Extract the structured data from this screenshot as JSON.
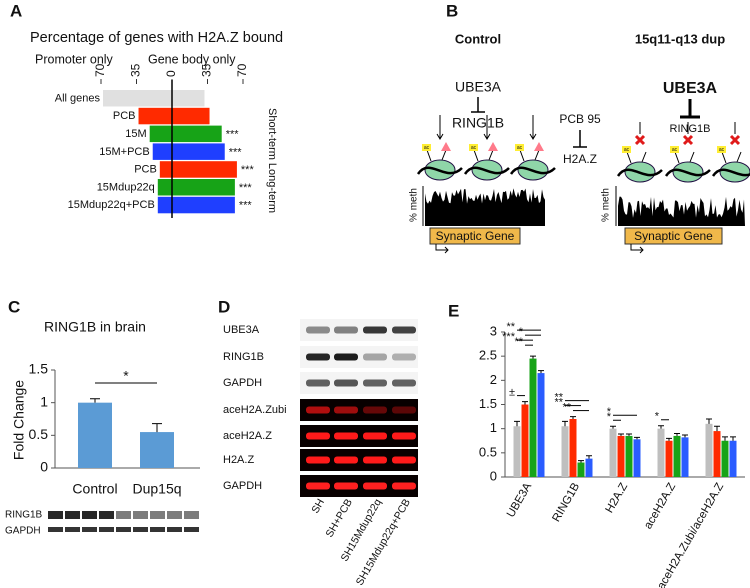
{
  "panel_labels": [
    "A",
    "B",
    "C",
    "D",
    "E"
  ],
  "chart_data": [
    {
      "type": "diverging_bar",
      "title": "Percentage of genes with H2A.Z bound",
      "categories": [
        "All genes",
        "PCB",
        "15M",
        "15M+PCB",
        "PCB",
        "15Mdup22q",
        "15Mdup22q+PCB"
      ],
      "series": [
        {
          "name": "Promoter only",
          "values": [
            -68,
            -33,
            -22,
            -19,
            -12,
            -14,
            -14
          ]
        },
        {
          "name": "Gene body only",
          "values": [
            32,
            37,
            49,
            52,
            64,
            62,
            62
          ]
        }
      ],
      "colors": [
        "#e0e0e0",
        "#ff2a00",
        "#17a317",
        "#1f3fff",
        "#ff2a00",
        "#17a317",
        "#1f3fff"
      ],
      "annotations": [
        null,
        null,
        "***",
        "***",
        "***",
        "***",
        "***"
      ],
      "groups": [
        "Short-term",
        "Long-term"
      ],
      "xlim": [
        -70,
        70
      ],
      "xticks": [
        {
          "value": -70,
          "label": "70"
        },
        {
          "value": -35,
          "label": "35"
        },
        0,
        35,
        70
      ]
    },
    {
      "type": "bar",
      "title": "RING1B in brain",
      "categories": [
        "Control",
        "Dup15q"
      ],
      "values": [
        1,
        0.55
      ],
      "errors": [
        0.06,
        0.13
      ],
      "color": "#5b9bd5",
      "ylabel": "Fold Change",
      "ylim": [
        0,
        1.5
      ],
      "yticks": [
        0,
        0.5,
        1,
        1.5
      ],
      "significance": "*",
      "blot_labels": [
        "RING1B",
        "GAPDH"
      ]
    },
    {
      "type": "grouped_bar",
      "categories": [
        "UBE3A",
        "RING1B",
        "H2A.Z",
        "aceH2A.Z",
        "aceH2A.Zubi/aceH2A.Z"
      ],
      "series": [
        {
          "color": "#bfbfbf",
          "values": [
            1.05,
            1.05,
            1,
            1,
            1.1
          ],
          "errors": [
            0.1,
            0.1,
            0.05,
            0.06,
            0.1
          ]
        },
        {
          "color": "#ff2a00",
          "values": [
            1.5,
            1.2,
            0.85,
            0.75,
            0.95
          ],
          "errors": [
            0.06,
            0.05,
            0.04,
            0.05,
            0.1
          ]
        },
        {
          "color": "#17a317",
          "values": [
            2.45,
            0.3,
            0.85,
            0.85,
            0.75
          ],
          "errors": [
            0.05,
            0.04,
            0.04,
            0.05,
            0.08
          ]
        },
        {
          "color": "#2a5cff",
          "values": [
            2.15,
            0.38,
            0.78,
            0.82,
            0.75
          ],
          "errors": [
            0.05,
            0.06,
            0.04,
            0.05,
            0.08
          ]
        }
      ],
      "ylim": [
        0,
        3
      ],
      "yticks": [
        0,
        0.5,
        1,
        1.5,
        2,
        2.5,
        3
      ],
      "significance": [
        {
          "category": 0,
          "between": [
            0,
            1
          ],
          "label": "±"
        },
        {
          "category": 0,
          "between": [
            1,
            2
          ],
          "label": "**"
        },
        {
          "category": 0,
          "between": [
            0,
            2
          ],
          "label": "***"
        },
        {
          "category": 0,
          "between": [
            1,
            3
          ],
          "label": "*"
        },
        {
          "category": 0,
          "between": [
            0,
            3
          ],
          "label": "**"
        },
        {
          "category": 1,
          "between": [
            1,
            3
          ],
          "label": "**"
        },
        {
          "category": 1,
          "between": [
            0,
            2
          ],
          "label": "**"
        },
        {
          "category": 1,
          "between": [
            0,
            3
          ],
          "label": "**"
        },
        {
          "category": 2,
          "between": [
            0,
            1
          ],
          "label": "*"
        },
        {
          "category": 2,
          "between": [
            0,
            3
          ],
          "label": "*"
        },
        {
          "category": 3,
          "between": [
            0,
            1
          ],
          "label": "*"
        }
      ]
    }
  ],
  "diagram": {
    "control": "Control",
    "dup": "15q11-q13 dup",
    "control_ube3a": "UBE3A",
    "control_ring1b": "RING1B",
    "pcb": "PCB 95",
    "h2az": "H2A.Z",
    "dup_ube3a": "UBE3A",
    "dup_ring1b": "RING1B",
    "acetyl_mark": "ac",
    "meth_axis": "% meth",
    "gene": "Synaptic Gene"
  },
  "blot": {
    "rows": [
      "UBE3A",
      "RING1B",
      "GAPDH",
      "aceH2A.Zubi",
      "aceH2A.Z",
      "H2A.Z",
      "GAPDH"
    ],
    "lanes": [
      "SH",
      "SH+PCB",
      "SH15Mdup22q",
      "SH15Mdup22q+PCB"
    ]
  }
}
